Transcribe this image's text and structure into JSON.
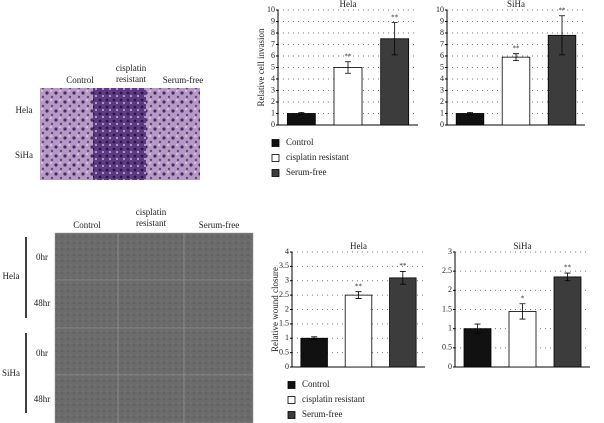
{
  "invasion_images": {
    "columns": [
      "Control",
      "cisplatin resistant",
      "Serum-free"
    ],
    "rows": [
      "Hela",
      "SiHa"
    ]
  },
  "wound_images": {
    "columns": [
      "Control",
      "cisplatin resistant",
      "Serum-free"
    ],
    "groups": [
      {
        "name": "Hela",
        "rows": [
          "0hr",
          "48hr"
        ]
      },
      {
        "name": "SiHa",
        "rows": [
          "0hr",
          "48hr"
        ]
      }
    ]
  },
  "legend_invasion": [
    {
      "name": "Control",
      "color": "#111111"
    },
    {
      "name": "cisplatin resistant",
      "color": "#ffffff"
    },
    {
      "name": "Serum-free",
      "color": "#3c3c3c"
    }
  ],
  "legend_wound": [
    {
      "name": "Control",
      "color": "#111111"
    },
    {
      "name": "cisplatin resistant",
      "color": "#ffffff"
    },
    {
      "name": "Serum-free",
      "color": "#3c3c3c"
    }
  ],
  "chart_data": [
    {
      "type": "bar",
      "title": "Hela",
      "ylabel": "Relative cell invasion",
      "values": [
        1,
        5,
        7.5
      ],
      "errors": [
        0.1,
        0.5,
        1.4
      ],
      "significance": [
        null,
        "**",
        "**"
      ],
      "ylim": [
        0,
        10
      ],
      "yticks": [
        0,
        1,
        2,
        3,
        4,
        5,
        6,
        7,
        8,
        9,
        10
      ],
      "grid": true
    },
    {
      "type": "bar",
      "title": "SiHa",
      "values": [
        1,
        5.9,
        7.8
      ],
      "errors": [
        0.1,
        0.3,
        1.7
      ],
      "significance": [
        null,
        "**",
        "**"
      ],
      "ylim": [
        0,
        10
      ],
      "yticks": [
        0,
        1,
        2,
        3,
        4,
        5,
        6,
        7,
        8,
        9,
        10
      ],
      "grid": true
    },
    {
      "type": "bar",
      "title": "Hela",
      "ylabel": "Relative wound closure",
      "values": [
        1,
        2.5,
        3.1
      ],
      "errors": [
        0.05,
        0.12,
        0.22
      ],
      "significance": [
        null,
        "**",
        "**"
      ],
      "ylim": [
        0,
        4
      ],
      "yticks": [
        0,
        0.5,
        1,
        1.5,
        2,
        2.5,
        3,
        3.5,
        4
      ],
      "grid": true
    },
    {
      "type": "bar",
      "title": "SiHa",
      "values": [
        1,
        1.45,
        2.35
      ],
      "errors": [
        0.12,
        0.2,
        0.1
      ],
      "significance": [
        null,
        "*",
        "**"
      ],
      "ylim": [
        0,
        3
      ],
      "yticks": [
        0,
        0.5,
        1,
        1.5,
        2,
        2.5,
        3
      ],
      "grid": true
    }
  ]
}
